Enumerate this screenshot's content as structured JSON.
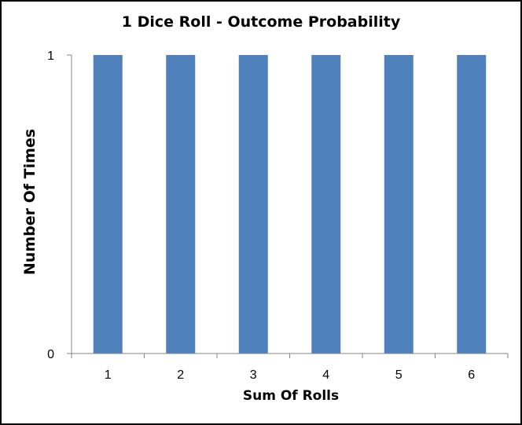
{
  "chart_data": {
    "type": "bar",
    "title": "1 Dice Roll - Outcome Probability",
    "xlabel": "Sum Of Rolls",
    "ylabel": "Number Of Times",
    "categories": [
      "1",
      "2",
      "3",
      "4",
      "5",
      "6"
    ],
    "values": [
      1,
      1,
      1,
      1,
      1,
      1
    ],
    "ylim": [
      0,
      1
    ],
    "yticks": [
      "0",
      "1"
    ],
    "grid": false,
    "legend": "none",
    "bar_color": "#4F81BD",
    "axis_color": "#868686"
  }
}
